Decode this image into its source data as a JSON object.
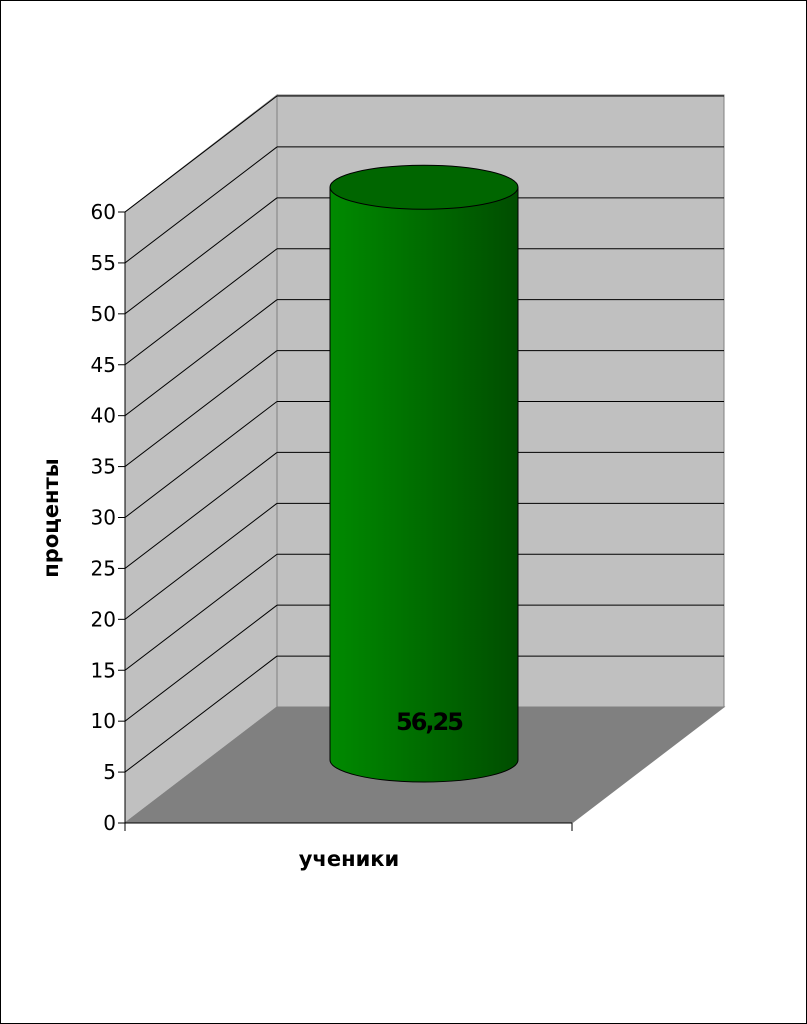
{
  "chart_data": {
    "type": "bar",
    "style": "3d-cylinder",
    "categories": [
      ""
    ],
    "series": [
      {
        "values": [
          56.25
        ],
        "color": "#007a00"
      }
    ],
    "data_labels": [
      "56,25"
    ],
    "xlabel": "ученики",
    "ylabel": "проценты",
    "ylim": [
      0,
      60
    ],
    "ytick_step": 5,
    "yticks": [
      "0",
      "5",
      "10",
      "15",
      "20",
      "25",
      "30",
      "35",
      "40",
      "45",
      "50",
      "55",
      "60"
    ],
    "grid": true,
    "legend": "none",
    "colors": {
      "back_wall": "#c0c0c0",
      "side_wall": "#c0c0c0",
      "floor": "#808080",
      "bar": "#007a00",
      "bar_top": "#006600"
    }
  }
}
